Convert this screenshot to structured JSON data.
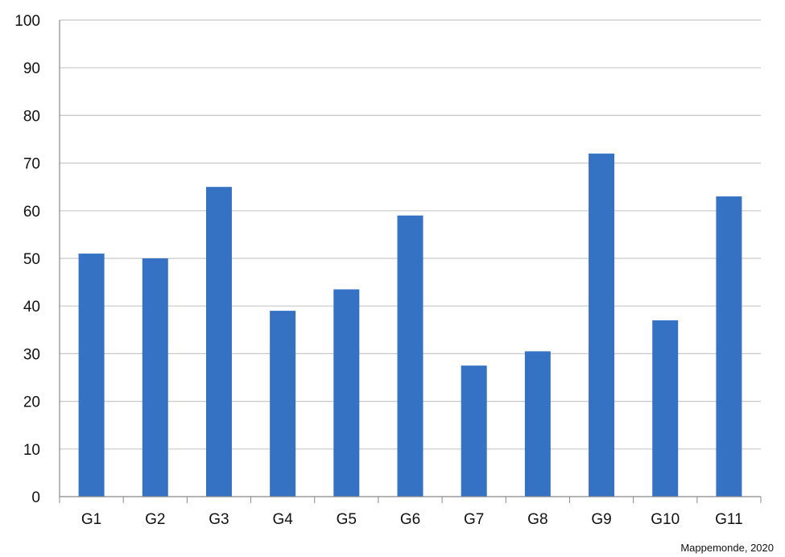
{
  "chart_data": {
    "type": "bar",
    "categories": [
      "G1",
      "G2",
      "G3",
      "G4",
      "G5",
      "G6",
      "G7",
      "G8",
      "G9",
      "G10",
      "G11"
    ],
    "values": [
      51,
      50,
      65,
      39,
      43.5,
      59,
      27.5,
      30.5,
      72,
      37,
      63
    ],
    "title": "",
    "xlabel": "",
    "ylabel": "",
    "ylim": [
      0,
      100
    ],
    "yticks": [
      "0",
      "10",
      "20",
      "30",
      "40",
      "50",
      "60",
      "70",
      "80",
      "90",
      "100"
    ],
    "grid": true,
    "legend": "none",
    "colors": {
      "bar": "#3572c4",
      "grid": "#c8c8c8",
      "axis": "#888888"
    }
  },
  "source_note": "Mappemonde, 2020"
}
